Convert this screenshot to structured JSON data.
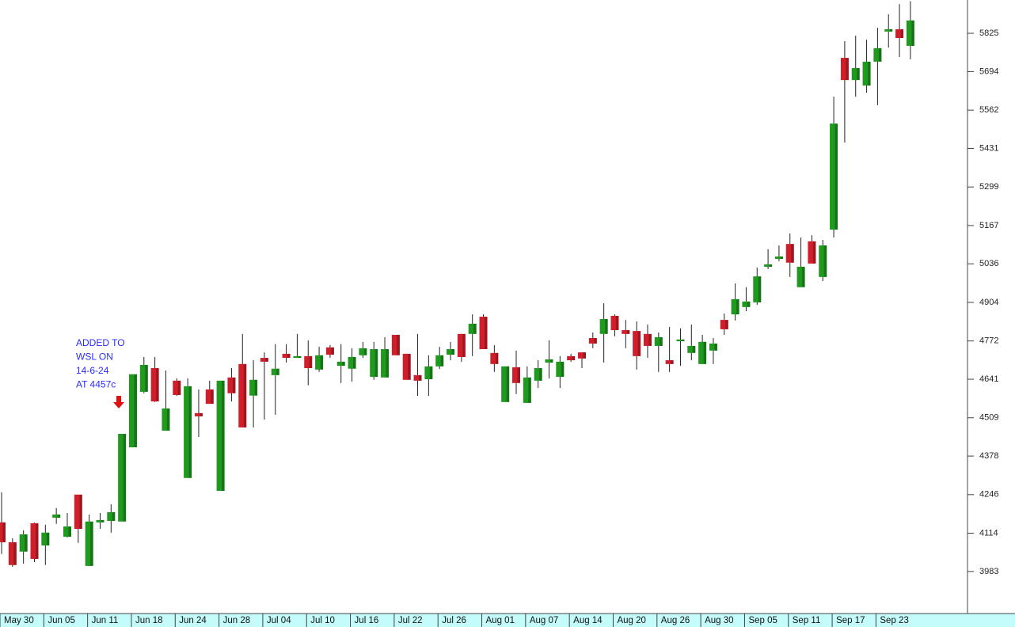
{
  "chart_data": {
    "type": "candlestick",
    "categories": [
      "May 30",
      null,
      null,
      null,
      "Jun 05",
      null,
      null,
      null,
      "Jun 11",
      null,
      null,
      null,
      "Jun 18",
      null,
      null,
      null,
      "Jun 24",
      null,
      null,
      null,
      "Jun 28",
      null,
      null,
      null,
      "Jul 04",
      null,
      null,
      null,
      "Jul 10",
      null,
      null,
      null,
      "Jul 16",
      null,
      null,
      null,
      "Jul 22",
      null,
      null,
      null,
      "Jul 26",
      null,
      null,
      null,
      "Aug 01",
      null,
      null,
      null,
      "Aug 07",
      null,
      null,
      null,
      "Aug 14",
      null,
      null,
      null,
      "Aug 20",
      null,
      null,
      null,
      "Aug 26",
      null,
      null,
      null,
      "Aug 30",
      null,
      null,
      null,
      "Sep 05",
      null,
      null,
      null,
      "Sep 11",
      null,
      null,
      null,
      "Sep 17",
      null,
      null,
      null,
      "Sep 23",
      null,
      null,
      null
    ],
    "open": [
      4151,
      4083,
      4051,
      4148,
      4072,
      4167,
      4102,
      4246,
      4002,
      4151,
      4156,
      4154,
      4408,
      4598,
      4679,
      4465,
      4636,
      4303,
      4525,
      4606,
      4259,
      4647,
      4693,
      4585,
      4714,
      4655,
      4728,
      4714,
      4720,
      4674,
      4750,
      4687,
      4677,
      4723,
      4649,
      4647,
      4793,
      4728,
      4655,
      4641,
      4685,
      4725,
      4796,
      4796,
      4855,
      4731,
      4563,
      4682,
      4560,
      4636,
      4698,
      4649,
      4720,
      4733,
      4782,
      4796,
      4858,
      4809,
      4806,
      4796,
      4755,
      4706,
      4771,
      4731,
      4693,
      4739,
      4844,
      4863,
      4888,
      4904,
      5026,
      5053,
      5104,
      4956,
      5113,
      4991,
      5153,
      5741,
      5665,
      5646,
      5728,
      5831,
      5839,
      5782
    ],
    "high": [
      4254,
      4097,
      4124,
      4150,
      4143,
      4200,
      4183,
      4246,
      4178,
      4183,
      4213,
      4454,
      4658,
      4717,
      4717,
      4671,
      4644,
      4644,
      4606,
      4636,
      4636,
      4679,
      4796,
      4706,
      4733,
      4761,
      4761,
      4796,
      4774,
      4752,
      4758,
      4761,
      4747,
      4769,
      4769,
      4785,
      4793,
      4728,
      4796,
      4723,
      4752,
      4769,
      4796,
      4863,
      4863,
      4758,
      4685,
      4739,
      4685,
      4706,
      4774,
      4720,
      4728,
      4733,
      4801,
      4901,
      4863,
      4844,
      4839,
      4828,
      4801,
      4820,
      4815,
      4828,
      4793,
      4782,
      4866,
      4969,
      4956,
      5023,
      5086,
      5099,
      5140,
      5126,
      5134,
      5118,
      5608,
      5798,
      5817,
      5803,
      5844,
      5890,
      5925,
      5935
    ],
    "low": [
      4043,
      3999,
      4010,
      4015,
      4005,
      4146,
      4099,
      4081,
      4002,
      4129,
      4116,
      4154,
      4408,
      4593,
      4563,
      4465,
      4584,
      4303,
      4443,
      4557,
      4259,
      4565,
      4476,
      4476,
      4503,
      4519,
      4698,
      4714,
      4620,
      4666,
      4714,
      4628,
      4633,
      4714,
      4639,
      4647,
      4723,
      4639,
      4584,
      4584,
      4676,
      4706,
      4701,
      4720,
      4744,
      4666,
      4563,
      4590,
      4560,
      4611,
      4644,
      4611,
      4701,
      4679,
      4747,
      4698,
      4788,
      4747,
      4674,
      4714,
      4666,
      4666,
      4687,
      4706,
      4693,
      4693,
      4793,
      4842,
      4874,
      4896,
      5018,
      5045,
      4991,
      4956,
      5037,
      4977,
      5126,
      5451,
      5608,
      5622,
      5579,
      5776,
      5744,
      5736
    ],
    "close": [
      4083,
      4005,
      4110,
      4026,
      4116,
      4178,
      4137,
      4129,
      4154,
      4159,
      4186,
      4454,
      4658,
      4690,
      4565,
      4541,
      4587,
      4617,
      4514,
      4557,
      4636,
      4593,
      4476,
      4639,
      4701,
      4677,
      4714,
      4720,
      4679,
      4723,
      4725,
      4701,
      4717,
      4747,
      4744,
      4744,
      4723,
      4639,
      4636,
      4685,
      4723,
      4744,
      4717,
      4831,
      4744,
      4693,
      4685,
      4628,
      4647,
      4679,
      4709,
      4701,
      4706,
      4712,
      4763,
      4847,
      4809,
      4796,
      4720,
      4755,
      4785,
      4693,
      4777,
      4755,
      4769,
      4763,
      4812,
      4915,
      4907,
      4993,
      5034,
      5061,
      5040,
      5026,
      5037,
      5099,
      5516,
      5665,
      5706,
      5728,
      5774,
      5839,
      5809,
      5869
    ],
    "ylim": [
      3839,
      5939
    ],
    "yticks": [
      3983,
      4114,
      4246,
      4378,
      4509,
      4641,
      4772,
      4904,
      5036,
      5167,
      5299,
      5431,
      5562,
      5694,
      5825
    ],
    "up_color": "#1f9a1f",
    "down_color": "#d01f2a",
    "annotation": [
      "ADDED TO",
      "WSL ON",
      "14-6-24",
      "AT 4457c"
    ],
    "annotation_color": "#2a2aff"
  }
}
